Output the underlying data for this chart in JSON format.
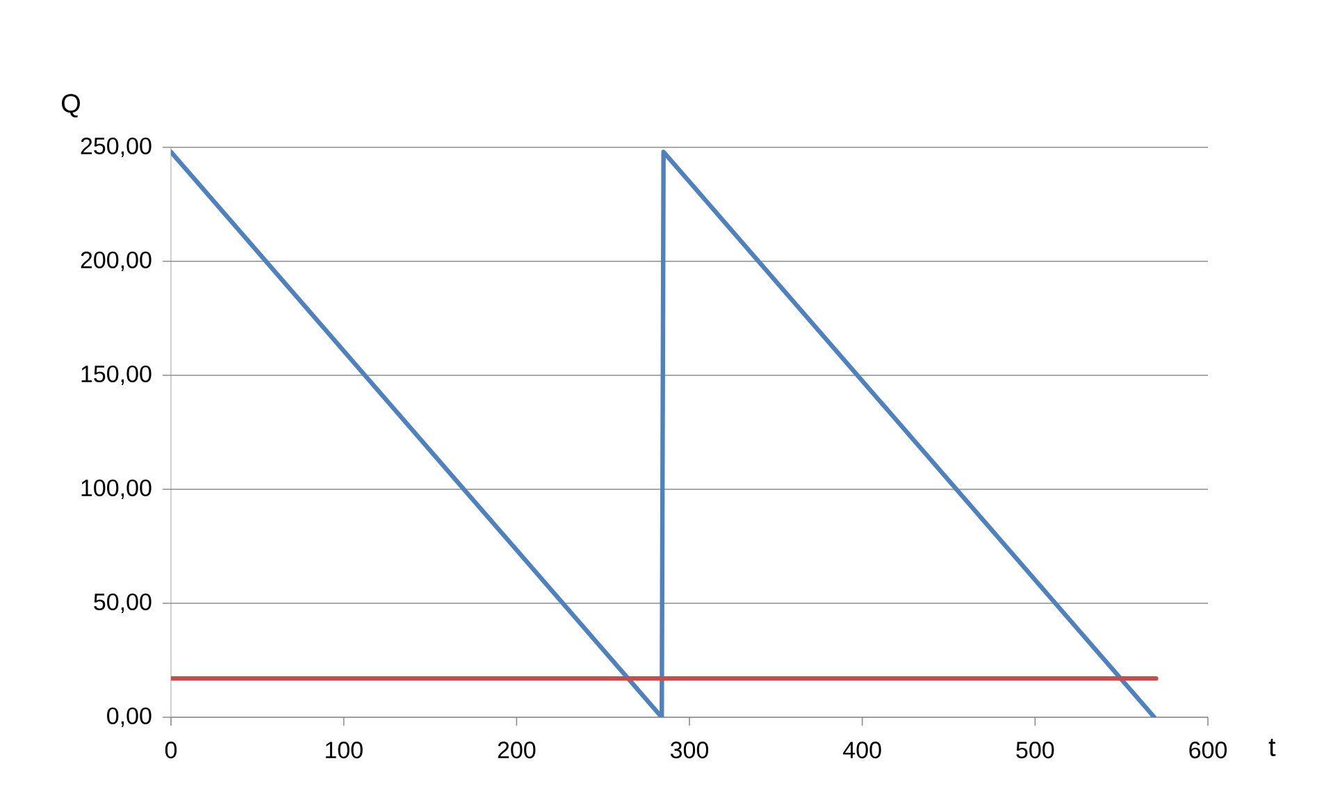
{
  "chart_data": {
    "type": "line",
    "xlabel": "t",
    "ylabel": "Q",
    "xlim": [
      0,
      600
    ],
    "xticks": [
      0,
      100,
      200,
      300,
      400,
      500,
      600
    ],
    "ylim": [
      0,
      250
    ],
    "yticks": [
      {
        "value": 0,
        "label": "0,00"
      },
      {
        "value": 50,
        "label": "50,00"
      },
      {
        "value": 100,
        "label": "100,00"
      },
      {
        "value": 150,
        "label": "150,00"
      },
      {
        "value": 200,
        "label": "200,00"
      },
      {
        "value": 250,
        "label": "250,00"
      }
    ],
    "grid": "y",
    "legend": false,
    "marker": "none",
    "line_style": "solid",
    "series": [
      {
        "color": "#4f81bd",
        "x": [
          0,
          284,
          285,
          569
        ],
        "values": [
          248,
          0,
          248,
          0
        ]
      },
      {
        "color": "#c0504d",
        "x": [
          0,
          570
        ],
        "values": [
          17,
          17
        ]
      }
    ]
  }
}
